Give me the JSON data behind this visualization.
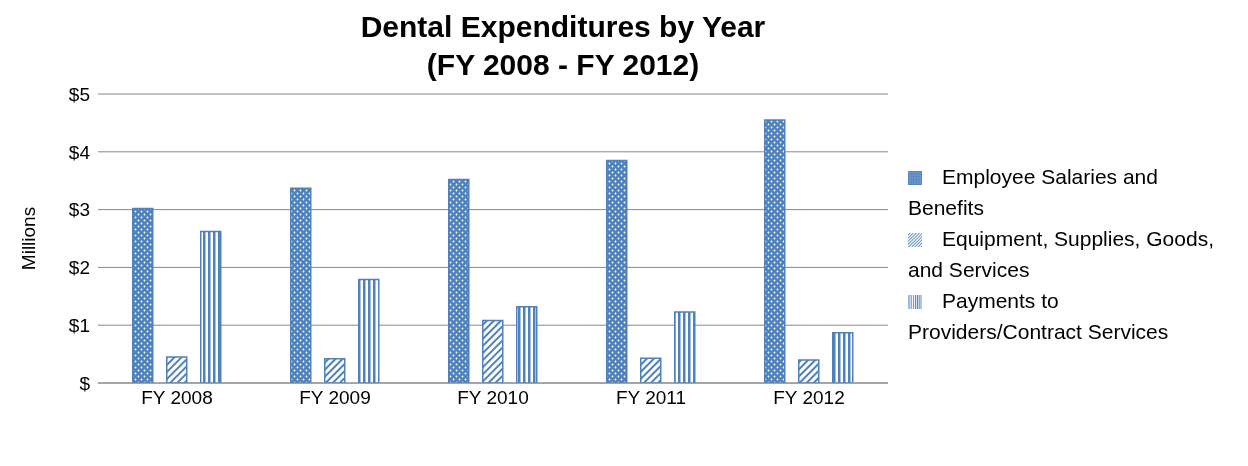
{
  "chart_data": {
    "type": "bar",
    "title": "Dental Expenditures by Year\n(FY 2008 - FY 2012)",
    "ylabel": "Millions",
    "categories": [
      "FY 2008",
      "FY 2009",
      "FY 2010",
      "FY 2011",
      "FY 2012"
    ],
    "series": [
      {
        "name": "Employee Salaries and Benefits",
        "color": "#4f81bd",
        "values": [
          3.02,
          3.37,
          3.52,
          3.85,
          4.55
        ]
      },
      {
        "name": "Equipment, Supplies, Goods, and Services",
        "color": "#4f81bd",
        "values": [
          0.45,
          0.42,
          1.08,
          0.43,
          0.4
        ]
      },
      {
        "name": "Payments to Providers/Contract Services",
        "color": "#4f81bd",
        "values": [
          2.62,
          1.79,
          1.32,
          1.23,
          0.87
        ]
      }
    ],
    "ylim": [
      0,
      5
    ],
    "yticks": [
      {
        "value": 0,
        "label": "$"
      },
      {
        "value": 1,
        "label": "$1"
      },
      {
        "value": 2,
        "label": "$2"
      },
      {
        "value": 3,
        "label": "$3"
      },
      {
        "value": 4,
        "label": "$4"
      },
      {
        "value": 5,
        "label": "$5"
      }
    ],
    "grid": "y",
    "legend": "right"
  }
}
